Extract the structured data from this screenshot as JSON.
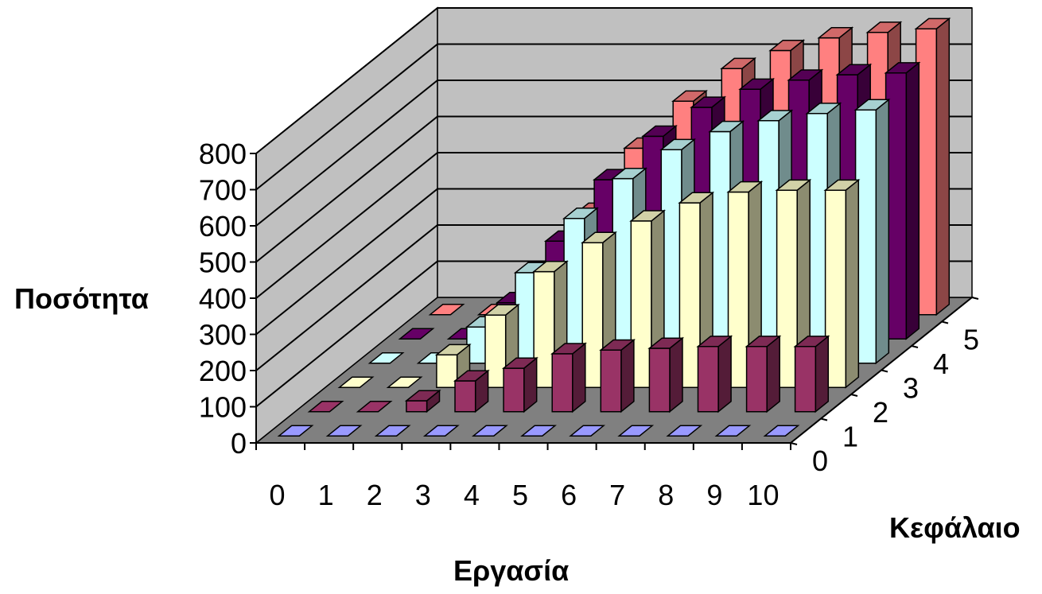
{
  "chart_data": {
    "type": "bar",
    "subtype": "3d-column",
    "xlabel": "Εργασία",
    "ylabel": "Ποσότητα",
    "zlabel": "Κεφάλαιο",
    "x": [
      0,
      1,
      2,
      3,
      4,
      5,
      6,
      7,
      8,
      9,
      10
    ],
    "z_ticks": [
      "0",
      "1",
      "2",
      "3",
      "4",
      "5"
    ],
    "y_ticks": [
      0,
      100,
      200,
      300,
      400,
      500,
      600,
      700,
      800
    ],
    "ylim": [
      0,
      800
    ],
    "grid": true,
    "series": [
      {
        "name": "0",
        "color": "#9999ff",
        "values": [
          0,
          0,
          0,
          0,
          0,
          0,
          0,
          0,
          0,
          0,
          0
        ]
      },
      {
        "name": "1",
        "color": "#993366",
        "values": [
          0,
          0,
          30,
          85,
          120,
          160,
          170,
          175,
          180,
          180,
          180
        ]
      },
      {
        "name": "2",
        "color": "#ffffcc",
        "values": [
          0,
          0,
          90,
          200,
          320,
          400,
          460,
          510,
          540,
          545,
          545
        ]
      },
      {
        "name": "3",
        "color": "#ccffff",
        "values": [
          0,
          0,
          100,
          250,
          400,
          510,
          590,
          640,
          670,
          690,
          700
        ]
      },
      {
        "name": "4",
        "color": "#660066",
        "values": [
          0,
          0,
          100,
          270,
          440,
          560,
          640,
          690,
          715,
          730,
          735
        ]
      },
      {
        "name": "5",
        "color": "#ff8080",
        "values": [
          0,
          0,
          100,
          280,
          460,
          590,
          680,
          730,
          765,
          780,
          790
        ]
      }
    ]
  }
}
